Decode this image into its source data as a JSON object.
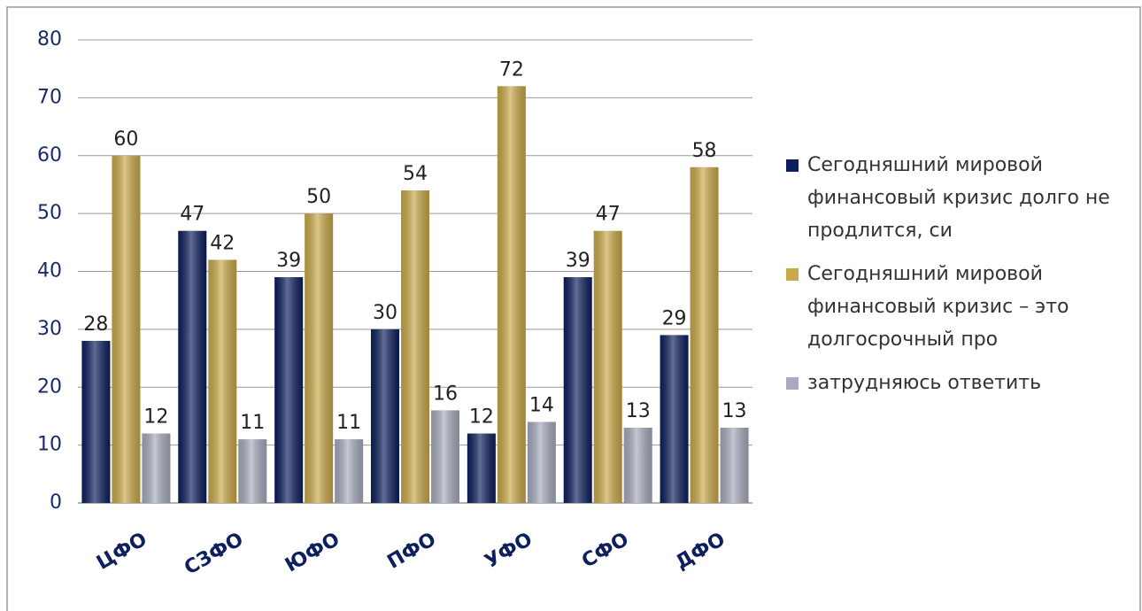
{
  "chart_data": {
    "type": "bar",
    "categories": [
      "ЦФО",
      "СЗФО",
      "ЮФО",
      "ПФО",
      "УФО",
      "СФО",
      "ДФО"
    ],
    "series": [
      {
        "name": "Сегодняшний мировой финансовый кризис долго не продлится, си",
        "color": "#0d1f5c",
        "values": [
          28,
          47,
          39,
          30,
          12,
          39,
          29
        ]
      },
      {
        "name": "Сегодняшний мировой финансовый кризис – это долгосрочный про",
        "color": "#c9a94a",
        "values": [
          60,
          42,
          50,
          54,
          72,
          47,
          58
        ]
      },
      {
        "name": "затрудняюсь ответить",
        "color": "#a7abbd",
        "values": [
          12,
          11,
          11,
          16,
          14,
          13,
          13
        ]
      }
    ],
    "ylim": [
      0,
      80
    ],
    "yticks": [
      0,
      10,
      20,
      30,
      40,
      50,
      60,
      70,
      80
    ],
    "grid": true,
    "legend": "right"
  }
}
